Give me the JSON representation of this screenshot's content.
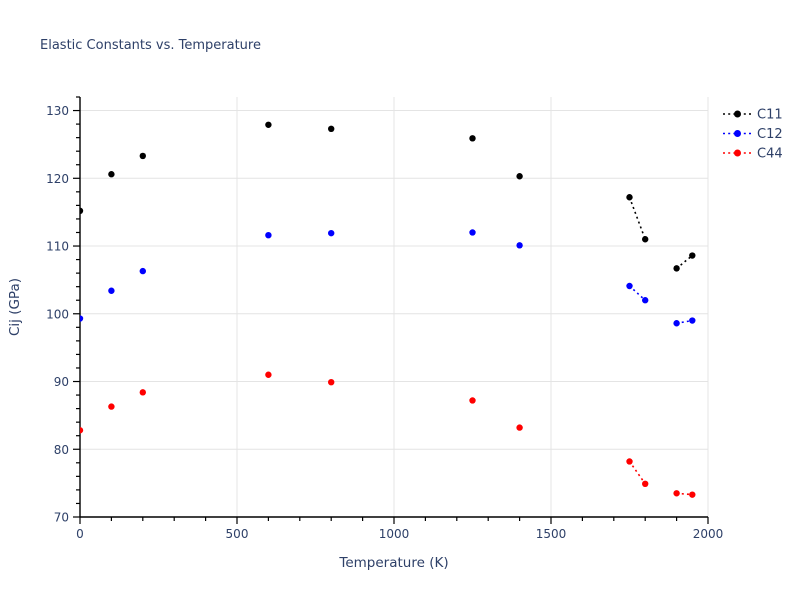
{
  "chart_data": {
    "type": "scatter",
    "title": "Elastic Constants vs. Temperature",
    "xlabel": "Temperature (K)",
    "ylabel": "Cij (GPa)",
    "xlim": [
      0,
      2000
    ],
    "ylim": [
      70,
      132
    ],
    "x_major_ticks": [
      0,
      500,
      1000,
      1500,
      2000
    ],
    "x_minor_step": 100,
    "y_major_ticks": [
      70,
      80,
      90,
      100,
      110,
      120,
      130
    ],
    "y_minor_step": 2,
    "grid": true,
    "legend_position": "right",
    "marker_style": "dot",
    "line_style": "dotted",
    "x": [
      0,
      100,
      200,
      600,
      800,
      1250,
      1400,
      1750,
      1800,
      1900,
      1950
    ],
    "series": [
      {
        "name": "C11",
        "color": "#000000",
        "values": [
          115.2,
          120.6,
          123.3,
          127.9,
          127.3,
          125.9,
          120.3,
          117.2,
          111.0,
          106.7,
          108.6
        ],
        "connected_pairs": [
          [
            7,
            8
          ],
          [
            9,
            10
          ]
        ]
      },
      {
        "name": "C12",
        "color": "#0000ff",
        "values": [
          99.3,
          103.4,
          106.3,
          111.6,
          111.9,
          112.0,
          110.1,
          104.1,
          102.0,
          98.6,
          99.0
        ],
        "connected_pairs": [
          [
            7,
            8
          ],
          [
            9,
            10
          ]
        ]
      },
      {
        "name": "C44",
        "color": "#ff0000",
        "values": [
          82.8,
          86.3,
          88.4,
          91.0,
          89.9,
          87.2,
          83.2,
          78.2,
          74.9,
          73.5,
          73.3
        ],
        "connected_pairs": [
          [
            7,
            8
          ],
          [
            9,
            10
          ]
        ]
      }
    ]
  },
  "colors": {
    "text": "#2e4068",
    "grid": "#e4e4e4",
    "axis": "#000000",
    "background": "#ffffff"
  }
}
